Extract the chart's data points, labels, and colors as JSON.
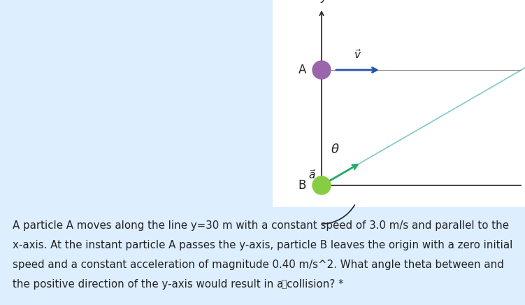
{
  "bg_color": "#ddeeff",
  "diagram_bg": "#ffffff",
  "left_bg": "#ddeeff",
  "particle_A_color": "#9966aa",
  "particle_B_color": "#88cc44",
  "velocity_color": "#2255aa",
  "accel_color": "#22aa66",
  "traj_color": "#88cccc",
  "axis_color": "#222222",
  "text_color": "#222222",
  "label_fontsize": 12,
  "body_fontsize": 10.8,
  "theta_deg": 60,
  "body_text_line1": "A particle A moves along the line y=30 m with a constant speed of 3.0 m/s and parallel to the",
  "body_text_line2": "x-axis. At the instant particle A passes the y-axis, particle B leaves the origin with a zero initial",
  "body_text_line3": "speed and a constant acceleration of magnitude 0.40 m/s^2. What angle theta between and",
  "body_text_line4": "the positive direction of the y-axis would result in a collision? *"
}
